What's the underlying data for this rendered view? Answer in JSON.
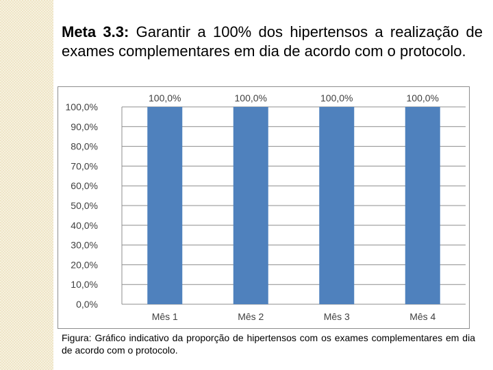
{
  "slide": {
    "heading_bold": "Meta 3.3:",
    "heading_text": " Garantir a 100% dos hipertensos a realização de exames complementares em dia de acordo com o protocolo.",
    "caption": "Figura: Gráfico indicativo da proporção de hipertensos com os exames complementares em dia de acordo com o protocolo."
  },
  "chart_data": {
    "type": "bar",
    "categories": [
      "Mês 1",
      "Mês 2",
      "Mês 3",
      "Mês 4"
    ],
    "values": [
      100.0,
      100.0,
      100.0,
      100.0
    ],
    "data_labels": [
      "100,0%",
      "100,0%",
      "100,0%",
      "100,0%"
    ],
    "ylim": [
      0,
      100
    ],
    "yticks": [
      "0,0%",
      "10,0%",
      "20,0%",
      "30,0%",
      "40,0%",
      "50,0%",
      "60,0%",
      "70,0%",
      "80,0%",
      "90,0%",
      "100,0%"
    ],
    "bar_color": "#4f81bd",
    "grid": true,
    "legend": "none",
    "title": "",
    "xlabel": "",
    "ylabel": ""
  }
}
